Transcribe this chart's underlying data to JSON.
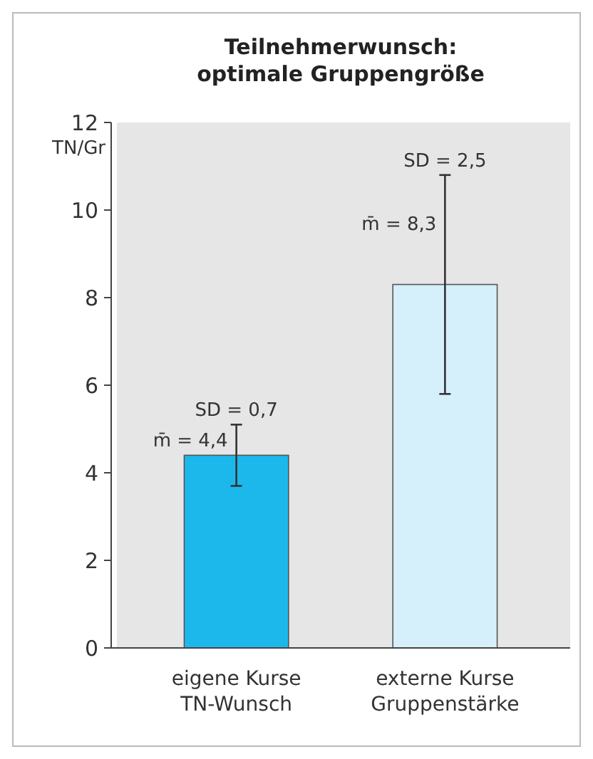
{
  "chart_data": {
    "type": "bar",
    "title": "Teilnehmerwunsch:\noptimale Gruppengröße",
    "ylabel": "TN/Gr",
    "categories": [
      "eigene Kurse\nTN-Wunsch",
      "externe Kurse\nGruppenstärke"
    ],
    "values": [
      4.4,
      8.3
    ],
    "colors": [
      "#1cb8ec",
      "#d6f0fb"
    ],
    "errors": [
      0.7,
      2.5
    ],
    "value_labels": [
      "m̄ = 4,4",
      "m̄ = 8,3"
    ],
    "annotations": [
      {
        "text": "SD = 0,7",
        "x": "eigene Kurse\nTN-Wunsch",
        "y": 5.1
      },
      {
        "text": "SD = 2,5",
        "x": "externe Kurse\nGruppenstärke",
        "y": 10.8
      }
    ],
    "ylim": [
      0,
      12
    ],
    "yticks": [
      0,
      2,
      4,
      6,
      8,
      10,
      12
    ],
    "grid": false
  }
}
